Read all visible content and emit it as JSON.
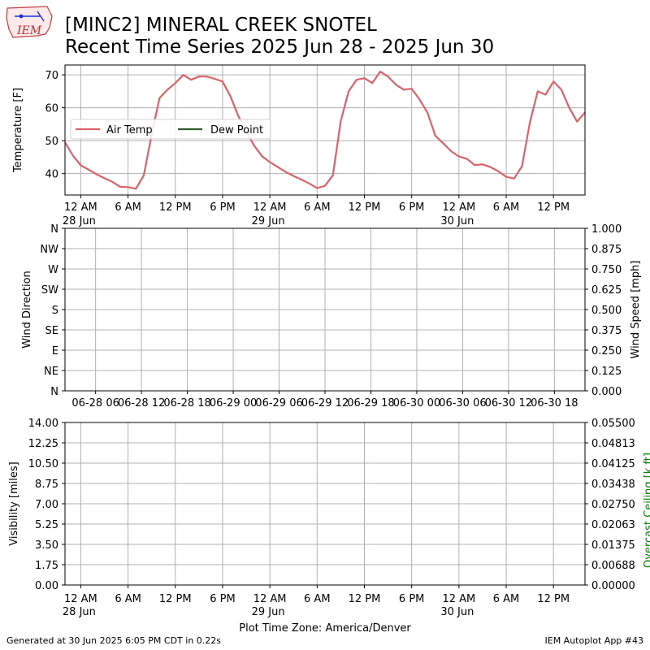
{
  "header": {
    "logo_text": "IEM",
    "title_line1": "[MINC2] MINERAL CREEK SNOTEL",
    "title_line2": "Recent Time Series 2025 Jun 28 - 2025 Jun 30"
  },
  "footer": {
    "generated": "Generated at 30 Jun 2025 6:05 PM CDT in 0.22s",
    "app": "IEM Autoplot App #43"
  },
  "colors": {
    "air_temp": "#d9626b",
    "dew_point": "#2e5c2e",
    "grid": "#b0b0b0",
    "ceiling_label": "#008000"
  },
  "chart_data": [
    {
      "type": "line",
      "panel": "temperature",
      "ylabel": "Temperature [F]",
      "ylim": [
        33.5,
        73
      ],
      "yticks": [
        40,
        50,
        60,
        70
      ],
      "xlim": [
        "2025-06-27 22:00",
        "2025-06-30 16:00"
      ],
      "xtick_labels": [
        {
          "t": "2025-06-28 00:00",
          "label": "12 AM",
          "sub": "28 Jun"
        },
        {
          "t": "2025-06-28 06:00",
          "label": "6 AM",
          "sub": ""
        },
        {
          "t": "2025-06-28 12:00",
          "label": "12 PM",
          "sub": ""
        },
        {
          "t": "2025-06-28 18:00",
          "label": "6 PM",
          "sub": ""
        },
        {
          "t": "2025-06-29 00:00",
          "label": "12 AM",
          "sub": "29 Jun"
        },
        {
          "t": "2025-06-29 06:00",
          "label": "6 AM",
          "sub": ""
        },
        {
          "t": "2025-06-29 12:00",
          "label": "12 PM",
          "sub": ""
        },
        {
          "t": "2025-06-29 18:00",
          "label": "6 PM",
          "sub": ""
        },
        {
          "t": "2025-06-30 00:00",
          "label": "12 AM",
          "sub": "30 Jun"
        },
        {
          "t": "2025-06-30 06:00",
          "label": "6 AM",
          "sub": ""
        },
        {
          "t": "2025-06-30 12:00",
          "label": "12 PM",
          "sub": ""
        }
      ],
      "legend": {
        "placement": "center-left",
        "entries": [
          "Air Temp",
          "Dew Point"
        ]
      },
      "grid": true,
      "series": [
        {
          "name": "Air Temp",
          "x": [
            "2025-06-27 22:00",
            "2025-06-27 23:00",
            "2025-06-28 00:00",
            "2025-06-28 01:00",
            "2025-06-28 02:00",
            "2025-06-28 03:00",
            "2025-06-28 04:00",
            "2025-06-28 05:00",
            "2025-06-28 06:00",
            "2025-06-28 07:00",
            "2025-06-28 08:00",
            "2025-06-28 09:00",
            "2025-06-28 10:00",
            "2025-06-28 11:00",
            "2025-06-28 12:00",
            "2025-06-28 13:00",
            "2025-06-28 14:00",
            "2025-06-28 15:00",
            "2025-06-28 16:00",
            "2025-06-28 17:00",
            "2025-06-28 18:00",
            "2025-06-28 19:00",
            "2025-06-28 20:00",
            "2025-06-28 21:00",
            "2025-06-28 22:00",
            "2025-06-28 23:00",
            "2025-06-29 00:00",
            "2025-06-29 01:00",
            "2025-06-29 02:00",
            "2025-06-29 03:00",
            "2025-06-29 04:00",
            "2025-06-29 05:00",
            "2025-06-29 06:00",
            "2025-06-29 07:00",
            "2025-06-29 08:00",
            "2025-06-29 09:00",
            "2025-06-29 10:00",
            "2025-06-29 11:00",
            "2025-06-29 12:00",
            "2025-06-29 13:00",
            "2025-06-29 14:00",
            "2025-06-29 15:00",
            "2025-06-29 16:00",
            "2025-06-29 17:00",
            "2025-06-29 18:00",
            "2025-06-29 19:00",
            "2025-06-29 20:00",
            "2025-06-29 21:00",
            "2025-06-29 22:00",
            "2025-06-29 23:00",
            "2025-06-30 00:00",
            "2025-06-30 01:00",
            "2025-06-30 02:00",
            "2025-06-30 03:00",
            "2025-06-30 04:00",
            "2025-06-30 05:00",
            "2025-06-30 06:00",
            "2025-06-30 07:00",
            "2025-06-30 08:00",
            "2025-06-30 09:00",
            "2025-06-30 10:00",
            "2025-06-30 11:00",
            "2025-06-30 12:00",
            "2025-06-30 13:00",
            "2025-06-30 14:00",
            "2025-06-30 15:00",
            "2025-06-30 16:00"
          ],
          "values": [
            49.5,
            45.5,
            42.5,
            41.2,
            39.8,
            38.6,
            37.5,
            36.0,
            35.9,
            35.4,
            39.5,
            52.0,
            63.0,
            65.5,
            67.5,
            70.0,
            68.5,
            69.5,
            69.5,
            68.8,
            68.0,
            63.5,
            57.5,
            53.0,
            48.5,
            45.3,
            43.5,
            42.0,
            40.5,
            39.3,
            38.2,
            37.0,
            35.6,
            36.3,
            39.5,
            56.0,
            65.0,
            68.5,
            69.0,
            67.5,
            71.0,
            69.5,
            67.0,
            65.5,
            65.8,
            62.5,
            58.5,
            51.5,
            49.2,
            46.8,
            45.2,
            44.5,
            42.6,
            42.8,
            42.0,
            40.7,
            39.0,
            38.5,
            42.2,
            55.5,
            65.0,
            64.0,
            68.0,
            65.5,
            60.0,
            55.8,
            58.6
          ]
        },
        {
          "name": "Dew Point",
          "x": [],
          "values": []
        }
      ]
    },
    {
      "type": "line",
      "panel": "wind",
      "ylabel": "Wind Direction",
      "ylabel_right": "Wind Speed [mph]",
      "y_ticks_left": [
        "N",
        "NE",
        "E",
        "SE",
        "S",
        "SW",
        "W",
        "NW",
        "N"
      ],
      "y_ticks_right": [
        "0.000",
        "0.125",
        "0.250",
        "0.375",
        "0.500",
        "0.625",
        "0.750",
        "0.875",
        "1.000"
      ],
      "ylim_right": [
        0,
        1
      ],
      "xlim": [
        "2025-06-28 02:00",
        "2025-06-30 22:00"
      ],
      "xtick_labels": [
        {
          "t": "2025-06-28 06:00",
          "label": "06-28 06"
        },
        {
          "t": "2025-06-28 12:00",
          "label": "06-28 12"
        },
        {
          "t": "2025-06-28 18:00",
          "label": "06-28 18"
        },
        {
          "t": "2025-06-29 00:00",
          "label": "06-29 00"
        },
        {
          "t": "2025-06-29 06:00",
          "label": "06-29 06"
        },
        {
          "t": "2025-06-29 12:00",
          "label": "06-29 12"
        },
        {
          "t": "2025-06-29 18:00",
          "label": "06-29 18"
        },
        {
          "t": "2025-06-30 00:00",
          "label": "06-30 00"
        },
        {
          "t": "2025-06-30 06:00",
          "label": "06-30 06"
        },
        {
          "t": "2025-06-30 12:00",
          "label": "06-30 12"
        },
        {
          "t": "2025-06-30 18:00",
          "label": "06-30 18"
        }
      ],
      "grid": true,
      "series": []
    },
    {
      "type": "line",
      "panel": "visibility",
      "ylabel": "Visibility [miles]",
      "ylabel_right": "Overcast Ceiling [k ft]",
      "ylim": [
        0,
        14
      ],
      "y_ticks_left": [
        "0.00",
        "1.75",
        "3.50",
        "5.25",
        "7.00",
        "8.75",
        "10.50",
        "12.25",
        "14.00"
      ],
      "ylim_right": [
        0,
        0.055
      ],
      "y_ticks_right": [
        "0.00000",
        "0.00688",
        "0.01375",
        "0.02063",
        "0.02750",
        "0.03438",
        "0.04125",
        "0.04813",
        "0.05500"
      ],
      "xlim": [
        "2025-06-27 22:00",
        "2025-06-30 16:00"
      ],
      "xtick_labels": [
        {
          "t": "2025-06-28 00:00",
          "label": "12 AM",
          "sub": "28 Jun"
        },
        {
          "t": "2025-06-28 06:00",
          "label": "6 AM",
          "sub": ""
        },
        {
          "t": "2025-06-28 12:00",
          "label": "12 PM",
          "sub": ""
        },
        {
          "t": "2025-06-28 18:00",
          "label": "6 PM",
          "sub": ""
        },
        {
          "t": "2025-06-29 00:00",
          "label": "12 AM",
          "sub": "29 Jun"
        },
        {
          "t": "2025-06-29 06:00",
          "label": "6 AM",
          "sub": ""
        },
        {
          "t": "2025-06-29 12:00",
          "label": "12 PM",
          "sub": ""
        },
        {
          "t": "2025-06-29 18:00",
          "label": "6 PM",
          "sub": ""
        },
        {
          "t": "2025-06-30 00:00",
          "label": "12 AM",
          "sub": "30 Jun"
        },
        {
          "t": "2025-06-30 06:00",
          "label": "6 AM",
          "sub": ""
        },
        {
          "t": "2025-06-30 12:00",
          "label": "12 PM",
          "sub": ""
        }
      ],
      "xlabel": "Plot Time Zone: America/Denver",
      "grid": true,
      "series": []
    }
  ]
}
